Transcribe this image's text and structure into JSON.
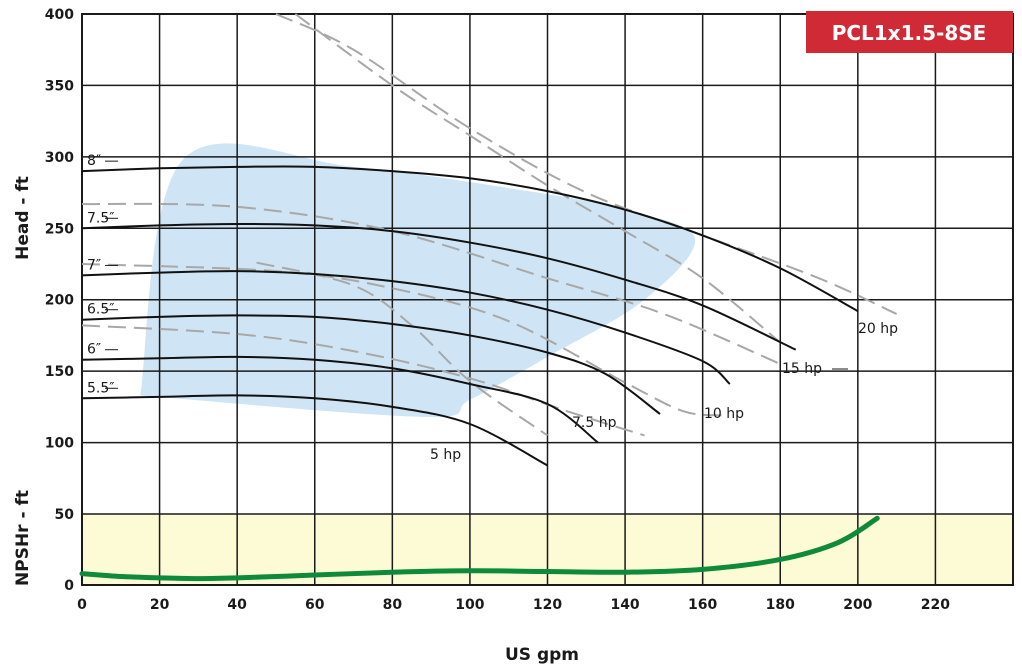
{
  "chart_data": {
    "type": "line",
    "title": "PCL1x1.5-8SE",
    "xlabel": "US gpm",
    "ylabel_head": "Head - ft",
    "ylabel_npshr": "NPSHr - ft",
    "xlim": [
      0,
      240
    ],
    "x_ticks": [
      0,
      20,
      40,
      60,
      80,
      100,
      120,
      140,
      160,
      180,
      200,
      220
    ],
    "head_ylim": [
      50,
      400
    ],
    "head_ticks": [
      100,
      150,
      200,
      250,
      300,
      350,
      400
    ],
    "npsh_ylim": [
      0,
      50
    ],
    "npsh_ticks": [
      0,
      50
    ],
    "grid": true,
    "colors": {
      "operating_region": "#cfe4f5",
      "npsh_band": "#fdfbd5",
      "npsh_curve": "#0e8a3c",
      "hp_lines": "#a8a8a8",
      "impeller_curves": "#111111",
      "model_badge": "#d12a37"
    },
    "impeller_curves": [
      {
        "label": "8″",
        "points": [
          [
            0,
            290
          ],
          [
            20,
            292
          ],
          [
            40,
            293
          ],
          [
            60,
            293
          ],
          [
            80,
            290
          ],
          [
            100,
            285
          ],
          [
            120,
            276
          ],
          [
            140,
            263
          ],
          [
            160,
            245
          ],
          [
            180,
            222
          ],
          [
            200,
            192
          ]
        ]
      },
      {
        "label": "7.5″",
        "points": [
          [
            0,
            250
          ],
          [
            20,
            252
          ],
          [
            40,
            253
          ],
          [
            60,
            252
          ],
          [
            80,
            248
          ],
          [
            100,
            240
          ],
          [
            120,
            229
          ],
          [
            140,
            214
          ],
          [
            160,
            196
          ],
          [
            184,
            165
          ]
        ]
      },
      {
        "label": "7″",
        "points": [
          [
            0,
            217
          ],
          [
            20,
            219
          ],
          [
            40,
            220
          ],
          [
            60,
            218
          ],
          [
            80,
            213
          ],
          [
            100,
            205
          ],
          [
            120,
            193
          ],
          [
            140,
            177
          ],
          [
            160,
            157
          ],
          [
            167,
            141
          ]
        ]
      },
      {
        "label": "6.5″",
        "points": [
          [
            0,
            186
          ],
          [
            20,
            188
          ],
          [
            40,
            189
          ],
          [
            60,
            188
          ],
          [
            80,
            183
          ],
          [
            100,
            175
          ],
          [
            120,
            163
          ],
          [
            135,
            148
          ],
          [
            149,
            120
          ]
        ]
      },
      {
        "label": "6″",
        "points": [
          [
            0,
            158
          ],
          [
            20,
            159
          ],
          [
            40,
            160
          ],
          [
            60,
            158
          ],
          [
            80,
            152
          ],
          [
            100,
            141
          ],
          [
            120,
            127
          ],
          [
            133,
            100
          ]
        ]
      },
      {
        "label": "5.5″",
        "points": [
          [
            0,
            131
          ],
          [
            20,
            132
          ],
          [
            40,
            133
          ],
          [
            60,
            131
          ],
          [
            80,
            125
          ],
          [
            100,
            113
          ],
          [
            120,
            84
          ]
        ]
      }
    ],
    "power_lines": [
      {
        "label": "20 hp",
        "points": [
          [
            50,
            400
          ],
          [
            70,
            375
          ],
          [
            100,
            320
          ],
          [
            130,
            275
          ],
          [
            160,
            245
          ],
          [
            190,
            215
          ],
          [
            210,
            190
          ]
        ]
      },
      {
        "label": "15 hp",
        "points": [
          [
            0,
            267
          ],
          [
            40,
            265
          ],
          [
            80,
            248
          ],
          [
            120,
            215
          ],
          [
            150,
            190
          ],
          [
            180,
            155
          ]
        ]
      },
      {
        "label": "15 hp",
        "points": [
          [
            55,
            400
          ],
          [
            80,
            350
          ],
          [
            100,
            315
          ],
          [
            120,
            280
          ],
          [
            140,
            248
          ],
          [
            160,
            215
          ],
          [
            180,
            170
          ]
        ]
      },
      {
        "label": "10 hp",
        "points": [
          [
            0,
            225
          ],
          [
            50,
            220
          ],
          [
            80,
            208
          ],
          [
            110,
            185
          ],
          [
            140,
            142
          ],
          [
            155,
            122
          ],
          [
            165,
            119
          ]
        ]
      },
      {
        "label": "7.5 hp",
        "points": [
          [
            0,
            182
          ],
          [
            40,
            176
          ],
          [
            70,
            164
          ],
          [
            100,
            145
          ],
          [
            125,
            122
          ],
          [
            145,
            105
          ]
        ]
      },
      {
        "label": "5 hp",
        "points": [
          [
            45,
            226
          ],
          [
            70,
            210
          ],
          [
            85,
            182
          ],
          [
            100,
            143
          ],
          [
            120,
            105
          ]
        ]
      }
    ],
    "hp_labels": [
      "20 hp",
      "15 hp",
      "10 hp",
      "7.5 hp",
      "5 hp"
    ],
    "operating_region": [
      [
        15,
        133
      ],
      [
        26,
        298
      ],
      [
        70,
        293
      ],
      [
        115,
        276
      ],
      [
        140,
        263
      ],
      [
        158,
        243
      ],
      [
        145,
        200
      ],
      [
        120,
        160
      ],
      [
        100,
        130
      ],
      [
        88,
        118
      ]
    ],
    "npshr_curve": {
      "points": [
        [
          0,
          8
        ],
        [
          10,
          6
        ],
        [
          20,
          5
        ],
        [
          30,
          4.5
        ],
        [
          40,
          5
        ],
        [
          60,
          7
        ],
        [
          80,
          9
        ],
        [
          100,
          10
        ],
        [
          120,
          9.5
        ],
        [
          140,
          9
        ],
        [
          160,
          11
        ],
        [
          180,
          18
        ],
        [
          195,
          30
        ],
        [
          205,
          47
        ]
      ]
    }
  }
}
